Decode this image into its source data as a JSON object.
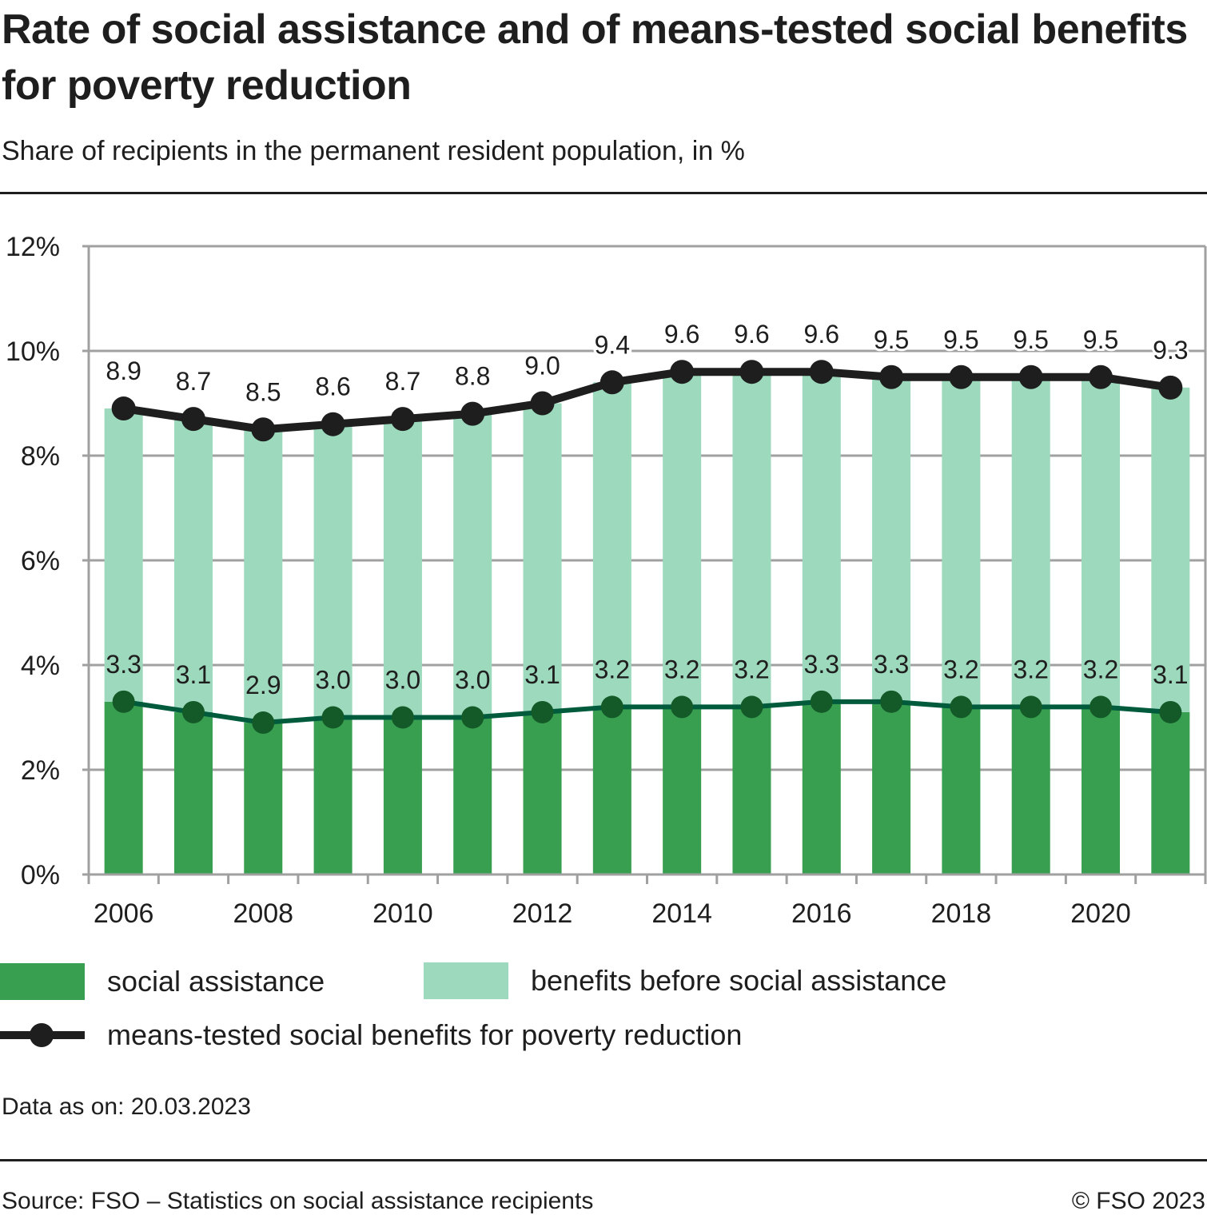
{
  "header": {
    "title": "Rate of social assistance and of means-tested social benefits for poverty reduction",
    "subtitle": "Share of recipients in the permanent resident population, in %"
  },
  "colors": {
    "social_assistance": "#389f50",
    "benefits_before": "#9dd9bc",
    "means_tested_line": "#1e1e1e",
    "social_line": "#005a3c",
    "social_marker": "#145a28",
    "grid": "#a0a0a0"
  },
  "chart_data": {
    "type": "bar",
    "stacked": true,
    "title": "Rate of social assistance and of means-tested social benefits for poverty reduction",
    "subtitle": "Share of recipients in the permanent resident population, in %",
    "xlabel": "",
    "ylabel": "",
    "categories": [
      "2006",
      "2007",
      "2008",
      "2009",
      "2010",
      "2011",
      "2012",
      "2013",
      "2014",
      "2015",
      "2016",
      "2017",
      "2018",
      "2019",
      "2020",
      "2021"
    ],
    "x_tick_labels": [
      "2006",
      "",
      "2008",
      "",
      "2010",
      "",
      "2012",
      "",
      "2014",
      "",
      "2016",
      "",
      "2018",
      "",
      "2020",
      ""
    ],
    "y_ticks": [
      0,
      2,
      4,
      6,
      8,
      10,
      12
    ],
    "y_tick_labels": [
      "0%",
      "2%",
      "4%",
      "6%",
      "8%",
      "10%",
      "12%"
    ],
    "ylim": [
      0,
      12
    ],
    "grid": "horizontal",
    "legend_position": "bottom",
    "series": [
      {
        "name": "social assistance",
        "type": "bar",
        "values": [
          3.3,
          3.1,
          2.9,
          3.0,
          3.0,
          3.0,
          3.1,
          3.2,
          3.2,
          3.2,
          3.3,
          3.3,
          3.2,
          3.2,
          3.2,
          3.1
        ],
        "labels": [
          "3.3",
          "3.1",
          "2.9",
          "3.0",
          "3.0",
          "3.0",
          "3.1",
          "3.2",
          "3.2",
          "3.2",
          "3.3",
          "3.3",
          "3.2",
          "3.2",
          "3.2",
          "3.1"
        ]
      },
      {
        "name": "benefits before social assistance",
        "type": "bar",
        "values": [
          5.6,
          5.6,
          5.6,
          5.6,
          5.7,
          5.8,
          5.9,
          6.2,
          6.4,
          6.4,
          6.3,
          6.2,
          6.3,
          6.3,
          6.3,
          6.2
        ]
      },
      {
        "name": "means-tested social benefits for poverty reduction",
        "type": "line",
        "values": [
          8.9,
          8.7,
          8.5,
          8.6,
          8.7,
          8.8,
          9.0,
          9.4,
          9.6,
          9.6,
          9.6,
          9.5,
          9.5,
          9.5,
          9.5,
          9.3
        ],
        "labels": [
          "8.9",
          "8.7",
          "8.5",
          "8.6",
          "8.7",
          "8.8",
          "9.0",
          "9.4",
          "9.6",
          "9.6",
          "9.6",
          "9.5",
          "9.5",
          "9.5",
          "9.5",
          "9.3"
        ]
      }
    ]
  },
  "legend": {
    "items": [
      {
        "label": "social assistance"
      },
      {
        "label": "benefits before social assistance"
      },
      {
        "label": "means-tested social benefits for poverty reduction"
      }
    ]
  },
  "footer": {
    "data_note": "Data as on: 20.03.2023",
    "source": "Source: FSO – Statistics on social assistance recipients",
    "copyright": "© FSO 2023"
  }
}
